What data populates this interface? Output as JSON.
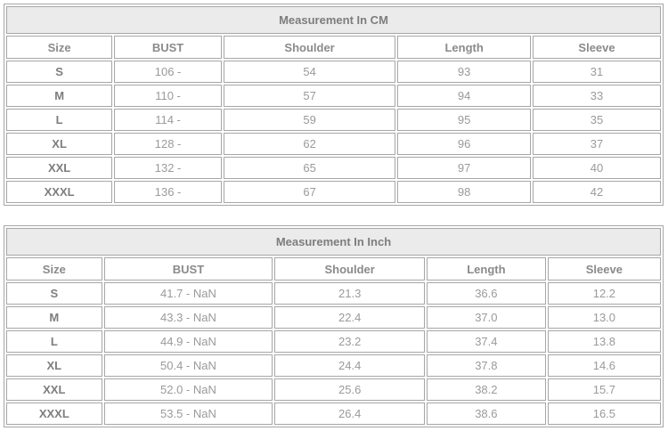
{
  "colors": {
    "border": "#a6a6a6",
    "title_bg": "#ebebeb",
    "title_text": "#7d7d7d",
    "header_text": "#8a8a8a",
    "size_text": "#7d7d7d",
    "cell_text": "#9a9a9a"
  },
  "tables": [
    {
      "title": "Measurement In CM",
      "columns": [
        "Size",
        "BUST",
        "Shoulder",
        "Length",
        "Sleeve"
      ],
      "col_widths": [
        "16.4%",
        "16.6%",
        "26.6%",
        "20.6%",
        "19.8%"
      ],
      "rows": [
        [
          "S",
          "106 -",
          "54",
          "93",
          "31"
        ],
        [
          "M",
          "110 -",
          "57",
          "94",
          "33"
        ],
        [
          "L",
          "114 -",
          "59",
          "95",
          "35"
        ],
        [
          "XL",
          "128 -",
          "62",
          "96",
          "37"
        ],
        [
          "XXL",
          "132 -",
          "65",
          "97",
          "40"
        ],
        [
          "XXXL",
          "136 -",
          "67",
          "98",
          "42"
        ]
      ]
    },
    {
      "title": "Measurement In Inch",
      "columns": [
        "Size",
        "BUST",
        "Shoulder",
        "Length",
        "Sleeve"
      ],
      "col_widths": [
        "14.8%",
        "26.1%",
        "23.2%",
        "18.4%",
        "17.5%"
      ],
      "rows": [
        [
          "S",
          "41.7 - NaN",
          "21.3",
          "36.6",
          "12.2"
        ],
        [
          "M",
          "43.3 - NaN",
          "22.4",
          "37.0",
          "13.0"
        ],
        [
          "L",
          "44.9 - NaN",
          "23.2",
          "37.4",
          "13.8"
        ],
        [
          "XL",
          "50.4 - NaN",
          "24.4",
          "37.8",
          "14.6"
        ],
        [
          "XXL",
          "52.0 - NaN",
          "25.6",
          "38.2",
          "15.7"
        ],
        [
          "XXXL",
          "53.5 - NaN",
          "26.4",
          "38.6",
          "16.5"
        ]
      ]
    }
  ]
}
